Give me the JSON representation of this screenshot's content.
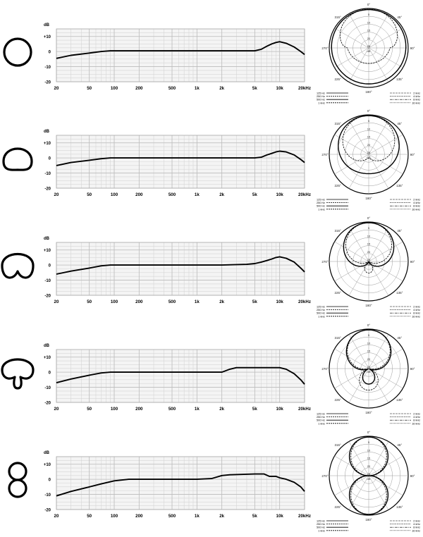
{
  "freq_axis": {
    "ticks": [
      20,
      50,
      100,
      200,
      500,
      1000,
      2000,
      5000,
      10000,
      20000
    ],
    "tick_labels": [
      "20",
      "50",
      "100",
      "200",
      "500",
      "1k",
      "2k",
      "5k",
      "10k",
      "20kHz"
    ],
    "xlim": [
      20,
      20000
    ],
    "scale": "log"
  },
  "level_axis": {
    "unit_label": "dB",
    "ticks": [
      10,
      0,
      -10,
      -20
    ],
    "tick_labels": [
      "+10",
      "0",
      "-10",
      "-20"
    ],
    "ylim": [
      -20,
      15
    ]
  },
  "polar_axis": {
    "angle_labels": [
      "0°",
      "45°",
      "90°",
      "135°",
      "180°",
      "225°",
      "270°",
      "315°"
    ],
    "ring_labels": [
      "5",
      "10",
      "15",
      "20",
      "25"
    ],
    "unit_label": "dB"
  },
  "polar_legend": {
    "left": [
      "125 Hz",
      "250 Hz",
      "500 Hz",
      "1 kHz"
    ],
    "right": [
      "2 kHz",
      "4 kHz",
      "8 kHz",
      "16 kHz"
    ]
  },
  "chart_data": [
    {
      "type": "line",
      "pattern": "omnidirectional",
      "x": [
        20,
        30,
        50,
        70,
        90,
        200,
        500,
        1000,
        2000,
        4000,
        5000,
        6000,
        7000,
        8000,
        9000,
        10000,
        12000,
        15000,
        18000,
        20000
      ],
      "y": [
        -4.5,
        -2.5,
        -1,
        0,
        0.5,
        0.5,
        0.5,
        0.5,
        0.5,
        0.5,
        0.5,
        1.5,
        3.5,
        5,
        6,
        6.5,
        5.5,
        3,
        0,
        -2
      ],
      "polar_patterns": [
        {
          "legend_side": "left",
          "style": "solid",
          "shape": "omni"
        },
        {
          "legend_side": "right",
          "style": "dashed",
          "shape": "omni-hf"
        }
      ]
    },
    {
      "type": "line",
      "pattern": "wide-cardioid",
      "x": [
        20,
        30,
        50,
        70,
        90,
        200,
        500,
        1000,
        2000,
        4000,
        5000,
        6000,
        7000,
        8000,
        9000,
        10000,
        12000,
        15000,
        18000,
        20000
      ],
      "y": [
        -5,
        -3,
        -1.5,
        -0.5,
        0,
        0,
        0,
        0,
        0,
        0,
        0,
        0.5,
        2,
        3,
        4,
        4.5,
        4,
        2,
        -1,
        -3
      ],
      "polar_patterns": [
        {
          "legend_side": "left",
          "style": "solid",
          "shape": "wide-cardioid"
        },
        {
          "legend_side": "right",
          "style": "dashed",
          "shape": "wide-cardioid-hf"
        }
      ]
    },
    {
      "type": "line",
      "pattern": "cardioid",
      "x": [
        20,
        30,
        50,
        70,
        90,
        200,
        500,
        1000,
        2000,
        4000,
        5000,
        6000,
        7000,
        8000,
        9000,
        10000,
        12000,
        15000,
        18000,
        20000
      ],
      "y": [
        -6,
        -4,
        -2,
        -0.5,
        0,
        0,
        0,
        0,
        0,
        0.5,
        1,
        2,
        3,
        4,
        5,
        5.5,
        4.5,
        2,
        -2,
        -4.5
      ],
      "polar_patterns": [
        {
          "legend_side": "left",
          "style": "solid",
          "shape": "cardioid"
        },
        {
          "legend_side": "right",
          "style": "dashed",
          "shape": "cardioid-hf"
        }
      ]
    },
    {
      "type": "line",
      "pattern": "hypercardioid",
      "x": [
        20,
        30,
        50,
        70,
        90,
        200,
        500,
        1000,
        2000,
        2500,
        3000,
        5000,
        8000,
        10000,
        12000,
        15000,
        18000,
        20000
      ],
      "y": [
        -7,
        -4.5,
        -2,
        -0.5,
        0,
        0,
        0,
        0,
        0,
        2,
        3,
        3,
        3,
        3,
        2,
        -1,
        -5,
        -8
      ],
      "polar_patterns": [
        {
          "legend_side": "left",
          "style": "solid",
          "shape": "hypercardioid"
        },
        {
          "legend_side": "right",
          "style": "dashed",
          "shape": "hypercardioid-hf"
        }
      ]
    },
    {
      "type": "line",
      "pattern": "figure-8",
      "x": [
        20,
        30,
        50,
        70,
        100,
        150,
        200,
        500,
        1000,
        1500,
        2000,
        2500,
        5000,
        6500,
        7500,
        9000,
        10000,
        12000,
        15000,
        18000,
        20000
      ],
      "y": [
        -11,
        -8,
        -5,
        -3,
        -1,
        0,
        0,
        0,
        0,
        0.5,
        2.5,
        3,
        3.5,
        3.5,
        2,
        2,
        1,
        0,
        -2,
        -5,
        -8
      ],
      "polar_patterns": [
        {
          "legend_side": "left",
          "style": "solid",
          "shape": "figure-8"
        },
        {
          "legend_side": "right",
          "style": "dashed",
          "shape": "figure-8-hf"
        }
      ]
    }
  ]
}
